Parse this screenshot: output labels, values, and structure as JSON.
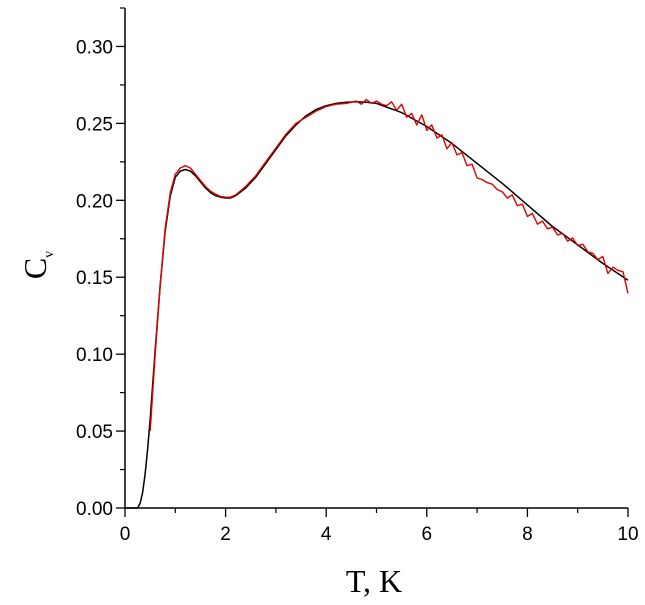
{
  "chart_data": {
    "type": "line",
    "title": "",
    "xlabel": "T, K",
    "ylabel": {
      "main": "C",
      "subscript": "v"
    },
    "xlim": [
      0,
      10
    ],
    "ylim": [
      0,
      0.325
    ],
    "x_ticks": [
      0,
      2,
      4,
      6,
      8,
      10
    ],
    "x_tick_labels": [
      "0",
      "2",
      "4",
      "6",
      "8",
      "10"
    ],
    "y_ticks": [
      0,
      0.05,
      0.1,
      0.15,
      0.2,
      0.25,
      0.3
    ],
    "y_tick_labels": [
      "0.00",
      "0.05",
      "0.10",
      "0.15",
      "0.20",
      "0.25",
      "0.30"
    ],
    "grid": false,
    "legend": "none",
    "series": [
      {
        "color": "#000000",
        "x": [
          0,
          0.25,
          0.3,
          0.35,
          0.4,
          0.45,
          0.5,
          0.6,
          0.7,
          0.8,
          0.9,
          1.0,
          1.1,
          1.2,
          1.3,
          1.4,
          1.5,
          1.6,
          1.7,
          1.8,
          1.9,
          2.0,
          2.1,
          2.2,
          2.4,
          2.6,
          2.8,
          3.0,
          3.2,
          3.4,
          3.6,
          3.8,
          4.0,
          4.2,
          4.4,
          4.6,
          4.8,
          5.0,
          5.5,
          6.0,
          6.5,
          7.0,
          7.5,
          8.0,
          8.5,
          9.0,
          9.5,
          10.0
        ],
        "y": [
          0.0,
          0.0,
          0.003,
          0.01,
          0.022,
          0.038,
          0.058,
          0.103,
          0.145,
          0.18,
          0.203,
          0.215,
          0.219,
          0.22,
          0.219,
          0.216,
          0.212,
          0.208,
          0.205,
          0.203,
          0.202,
          0.2015,
          0.2015,
          0.203,
          0.208,
          0.215,
          0.224,
          0.233,
          0.242,
          0.249,
          0.255,
          0.259,
          0.2615,
          0.263,
          0.2638,
          0.264,
          0.2638,
          0.263,
          0.257,
          0.248,
          0.237,
          0.224,
          0.211,
          0.197,
          0.183,
          0.171,
          0.159,
          0.148
        ]
      },
      {
        "color": "#e00000",
        "x": [
          0.5,
          0.6,
          0.7,
          0.8,
          0.9,
          1.0,
          1.1,
          1.2,
          1.3,
          1.4,
          1.5,
          1.6,
          1.7,
          1.8,
          1.9,
          2.0,
          2.1,
          2.2,
          2.4,
          2.6,
          2.8,
          3.0,
          3.2,
          3.4,
          3.6,
          3.8,
          4.0,
          4.2,
          4.4,
          4.6,
          4.7,
          4.8,
          4.9,
          5.0,
          5.1,
          5.2,
          5.3,
          5.4,
          5.5,
          5.6,
          5.7,
          5.8,
          5.9,
          6.0,
          6.1,
          6.2,
          6.3,
          6.4,
          6.5,
          6.6,
          6.7,
          6.8,
          6.9,
          7.0,
          7.1,
          7.2,
          7.3,
          7.4,
          7.5,
          7.6,
          7.7,
          7.8,
          7.9,
          8.0,
          8.1,
          8.2,
          8.3,
          8.4,
          8.5,
          8.6,
          8.7,
          8.8,
          8.9,
          9.0,
          9.1,
          9.2,
          9.3,
          9.4,
          9.5,
          9.6,
          9.7,
          9.8,
          9.9,
          10.0
        ],
        "y": [
          0.05,
          0.1,
          0.145,
          0.182,
          0.205,
          0.217,
          0.221,
          0.2225,
          0.221,
          0.217,
          0.213,
          0.209,
          0.206,
          0.204,
          0.2025,
          0.202,
          0.202,
          0.2035,
          0.209,
          0.216,
          0.225,
          0.234,
          0.243,
          0.25,
          0.254,
          0.258,
          0.261,
          0.2625,
          0.263,
          0.2645,
          0.2625,
          0.2655,
          0.263,
          0.2645,
          0.2625,
          0.2615,
          0.264,
          0.2585,
          0.2625,
          0.254,
          0.2565,
          0.249,
          0.2555,
          0.2455,
          0.249,
          0.2405,
          0.2425,
          0.2335,
          0.2375,
          0.2295,
          0.231,
          0.2225,
          0.2235,
          0.2145,
          0.2135,
          0.2115,
          0.2105,
          0.207,
          0.2055,
          0.2015,
          0.2035,
          0.1965,
          0.1975,
          0.1895,
          0.1915,
          0.1845,
          0.1865,
          0.1815,
          0.1825,
          0.1775,
          0.1785,
          0.1735,
          0.1755,
          0.1705,
          0.1715,
          0.1665,
          0.1655,
          0.1615,
          0.1635,
          0.1525,
          0.1565,
          0.1545,
          0.1535,
          0.1395
        ]
      }
    ]
  }
}
